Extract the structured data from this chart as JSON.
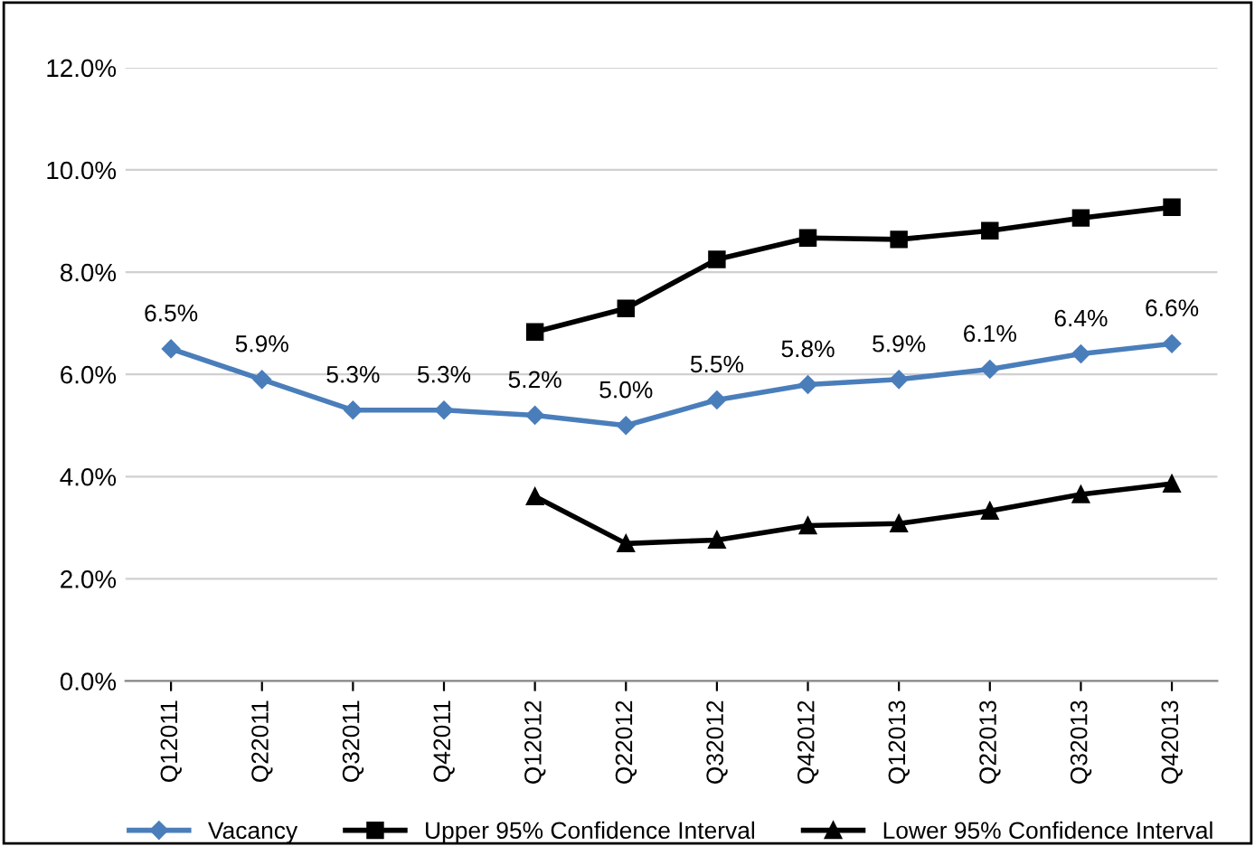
{
  "chart_data": {
    "type": "line",
    "categories": [
      "Q12011",
      "Q22011",
      "Q32011",
      "Q42011",
      "Q12012",
      "Q22012",
      "Q32012",
      "Q42012",
      "Q12013",
      "Q22013",
      "Q32013",
      "Q42013"
    ],
    "series": [
      {
        "name": "Vacancy",
        "color": "#4a7ebb",
        "marker": "diamond",
        "data_labels": true,
        "value_labels": [
          "6.5%",
          "5.9%",
          "5.3%",
          "5.3%",
          "5.2%",
          "5.0%",
          "5.5%",
          "5.8%",
          "5.9%",
          "6.1%",
          "6.4%",
          "6.6%"
        ],
        "values": [
          6.5,
          5.9,
          5.3,
          5.3,
          5.2,
          5.0,
          5.5,
          5.8,
          5.9,
          6.1,
          6.4,
          6.6
        ]
      },
      {
        "name": "Upper 95% Confidence Interval",
        "color": "#000000",
        "marker": "square",
        "values": [
          null,
          null,
          null,
          null,
          6.83,
          7.29,
          8.25,
          8.67,
          8.64,
          8.81,
          9.06,
          9.27
        ]
      },
      {
        "name": "Lower 95% Confidence Interval",
        "color": "#000000",
        "marker": "triangle",
        "values": [
          null,
          null,
          null,
          null,
          3.61,
          2.69,
          2.76,
          3.04,
          3.08,
          3.33,
          3.65,
          3.86
        ]
      }
    ],
    "ylim": [
      0,
      12
    ],
    "yticks": [
      {
        "value": 0,
        "label": "0.0%"
      },
      {
        "value": 2,
        "label": "2.0%"
      },
      {
        "value": 4,
        "label": "4.0%"
      },
      {
        "value": 6,
        "label": "6.0%"
      },
      {
        "value": 8,
        "label": "8.0%"
      },
      {
        "value": 10,
        "label": "10.0%"
      },
      {
        "value": 12,
        "label": "12.0%"
      }
    ],
    "grid": "y",
    "legend": "bottom"
  }
}
